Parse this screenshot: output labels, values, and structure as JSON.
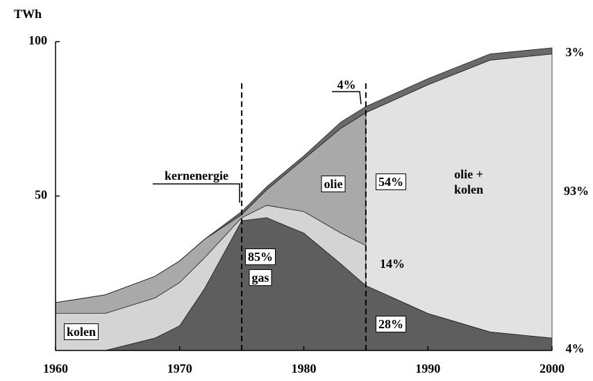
{
  "chart_data": {
    "type": "stacked_area",
    "y_label": "TWh",
    "x": [
      1960,
      1964,
      1968,
      1970,
      1972,
      1975,
      1977,
      1980,
      1983,
      1985,
      1985,
      1990,
      1995,
      2000
    ],
    "series": [
      {
        "name": "gas",
        "color": "#5e5e5e",
        "values": [
          0,
          0,
          4,
          8,
          20,
          42,
          43,
          38,
          28,
          21,
          21,
          12,
          6,
          4
        ]
      },
      {
        "name": "kolen",
        "color": "#d4d4d4",
        "values": [
          12,
          12,
          13,
          14,
          10,
          1,
          4,
          7,
          10,
          13,
          0,
          0,
          0,
          0
        ]
      },
      {
        "name": "olie",
        "color": "#a9a9a9",
        "values": [
          3.5,
          6,
          7,
          7,
          6,
          1,
          5,
          17,
          34,
          43,
          0,
          0,
          0,
          0
        ]
      },
      {
        "name": "olie + kolen",
        "color": "#e2e2e2",
        "values": [
          0,
          0,
          0,
          0,
          0,
          0,
          0,
          0,
          0,
          0,
          56,
          74,
          88,
          92
        ]
      },
      {
        "name": "kernenergie",
        "color": "#6a6a6a",
        "values": [
          0,
          0,
          0,
          0,
          0,
          1,
          1,
          1,
          2,
          2,
          2,
          2,
          2,
          2
        ]
      }
    ],
    "annotations": [
      "85%",
      "54%",
      "14%",
      "28%",
      "4%",
      "3%",
      "93%",
      "4%"
    ],
    "vlines": [
      1975,
      1985
    ],
    "xlim": [
      1960,
      2000
    ],
    "xticks": [
      1960,
      1970,
      1980,
      1990,
      2000
    ],
    "ylim": [
      0,
      100
    ],
    "yticks": [
      50,
      100
    ]
  }
}
